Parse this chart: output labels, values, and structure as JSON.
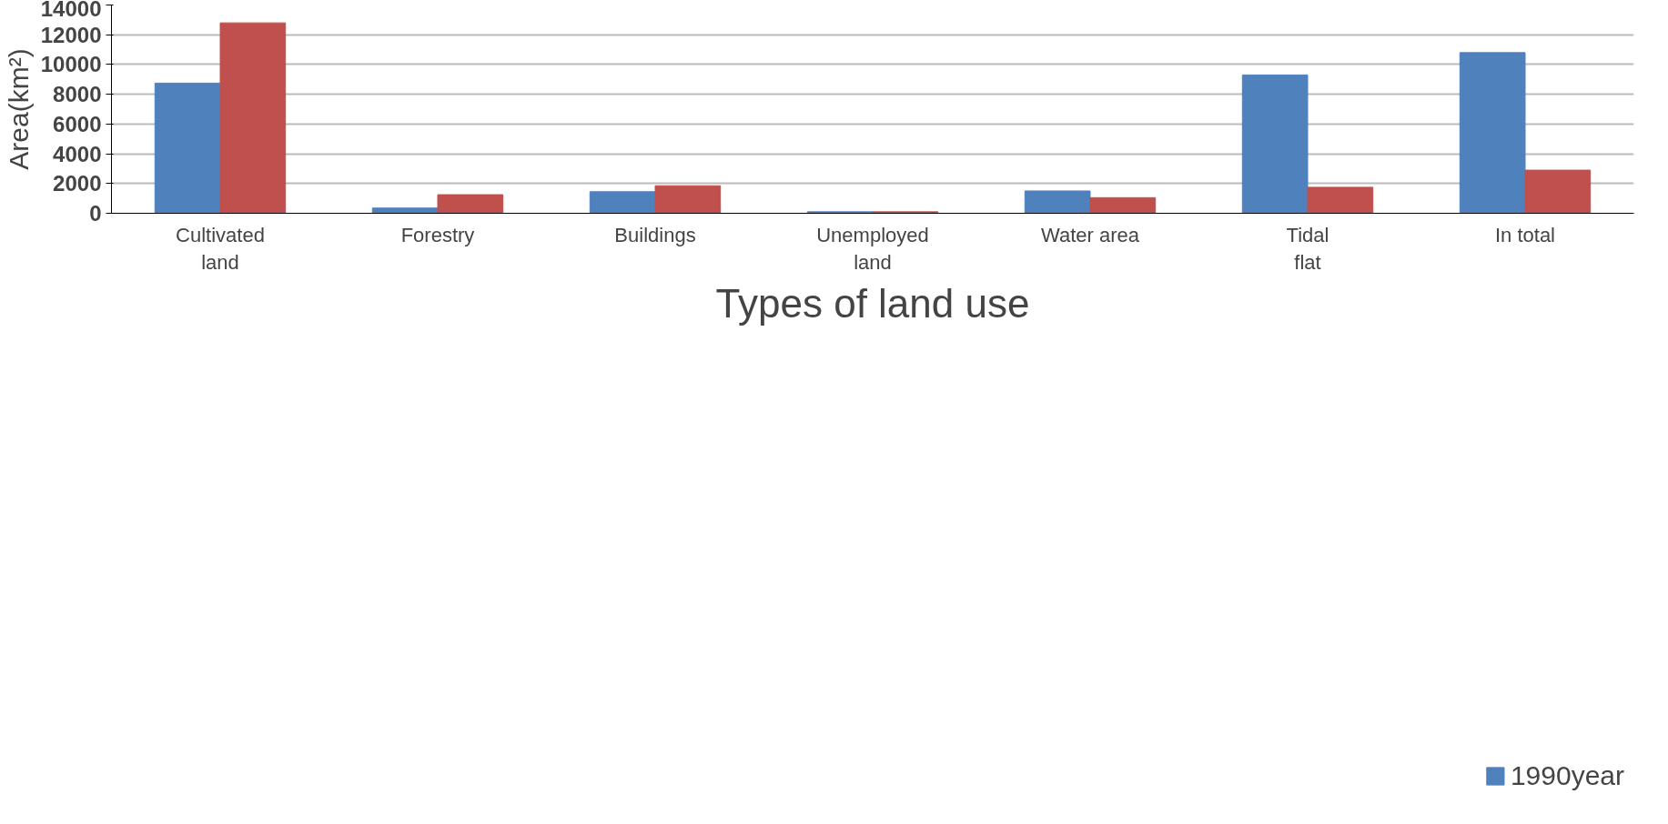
{
  "chart_data": {
    "type": "bar",
    "xlabel": "Types of land use",
    "ylabel": "Area(km²)",
    "categories": [
      "Cultivated\nland",
      "Forestry",
      "Buildings",
      "Unemployed\nland",
      "Water area",
      "Tidal\nflat",
      "In total"
    ],
    "series": [
      {
        "name": "1990year",
        "color": "#4f81bd",
        "values": [
          8750,
          350,
          1450,
          100,
          1500,
          9300,
          10800
        ]
      },
      {
        "color": "#c0504d",
        "values": [
          12800,
          1250,
          1850,
          100,
          1050,
          1750,
          2900
        ]
      }
    ],
    "ylim": [
      0,
      14000
    ],
    "yticks": [
      0,
      2000,
      4000,
      6000,
      8000,
      10000,
      12000,
      14000
    ],
    "grid": "y",
    "legend": "bottom right"
  }
}
